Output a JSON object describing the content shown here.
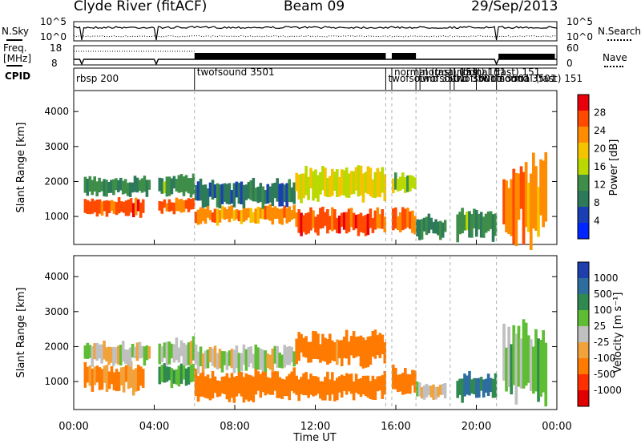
{
  "header": {
    "station": "Clyde River (fitACF)",
    "beam": "Beam 09",
    "date": "29/Sep/2013"
  },
  "nsky_panel": {
    "left_label": "N.Sky",
    "right_label": "N.Search",
    "left_ticks": [
      "10^5",
      "10^0"
    ],
    "right_ticks": [
      "10^5",
      "10^0"
    ]
  },
  "freq_panel": {
    "left_label_1": "Freq.",
    "left_label_2": "[MHz]",
    "right_label": "Nave",
    "left_ticks": [
      "18",
      "8"
    ],
    "right_ticks": [
      "60",
      "0"
    ]
  },
  "cpid": {
    "label": "CPID",
    "segments": [
      {
        "name": "rbsp 200",
        "start_hour": 0.0
      },
      {
        "name": "twofsound 3501",
        "start_hour": 6.0
      },
      {
        "name": "twofsound 3501",
        "start_hour": 15.5
      },
      {
        "name": "normal (fast) 151",
        "start_hour": 15.8
      },
      {
        "name": "twofsound 3501",
        "start_hour": 17.0
      },
      {
        "name": "normal (fast) 151",
        "start_hour": 17.2
      },
      {
        "name": "twofsound 3501",
        "start_hour": 18.7
      },
      {
        "name": "normal (fast) 151",
        "start_hour": 18.9
      },
      {
        "name": "twofsound 3501",
        "start_hour": 20.0
      },
      {
        "name": "normal (fast) 151",
        "start_hour": 21.0
      }
    ]
  },
  "axes": {
    "ylabel": "Slant Range [km]",
    "xlabel": "Time UT",
    "y_ticks": [
      "4000",
      "3000",
      "2000",
      "1000"
    ],
    "x_ticks": [
      "00:00",
      "04:00",
      "08:00",
      "12:00",
      "16:00",
      "20:00",
      "00:00"
    ]
  },
  "power_colorbar": {
    "label": "Power [dB]",
    "ticks": [
      "28",
      "24",
      "20",
      "16",
      "12",
      "8",
      "4"
    ],
    "colors": [
      "#e8000b",
      "#ff4a00",
      "#ff8c00",
      "#f5c400",
      "#b9d900",
      "#3e8e4a",
      "#2c7a5a",
      "#1a3fb4",
      "#0026ff"
    ]
  },
  "velocity_colorbar": {
    "label": "Velocity [m s⁻¹]",
    "ticks": [
      "1000",
      "500",
      "100",
      "25",
      "-25",
      "-100",
      "-500",
      "-1000"
    ],
    "colors": [
      "#1f3fae",
      "#2e6e9e",
      "#2f8a4f",
      "#5fbd34",
      "#c0c0c0",
      "#f2a23a",
      "#ff7a00",
      "#ff3000",
      "#e00000"
    ]
  },
  "chart_data": {
    "type": "heatmap",
    "title": "Clyde River (fitACF) Beam 09 29/Sep/2013",
    "xlabel": "Time UT",
    "ylabel": "Slant Range [km]",
    "xlim": [
      0,
      24
    ],
    "ylim": [
      200,
      4600
    ],
    "panels": [
      {
        "name": "Power",
        "colorbar_label": "Power [dB]",
        "colorbar_range": [
          0,
          32
        ],
        "regions": [
          {
            "t0": 0.5,
            "t1": 3.5,
            "r0": 1000,
            "r1": 1500,
            "value": 28
          },
          {
            "t0": 0.5,
            "t1": 3.8,
            "r0": 1600,
            "r1": 2100,
            "value": 10
          },
          {
            "t0": 4.2,
            "t1": 6.0,
            "r0": 1100,
            "r1": 1500,
            "value": 26
          },
          {
            "t0": 4.2,
            "t1": 6.0,
            "r0": 1600,
            "r1": 2200,
            "value": 12
          },
          {
            "t0": 6.0,
            "t1": 11.0,
            "r0": 800,
            "r1": 1300,
            "value": 24
          },
          {
            "t0": 6.0,
            "t1": 11.0,
            "r0": 1300,
            "r1": 2000,
            "value": 8
          },
          {
            "t0": 11.0,
            "t1": 15.5,
            "r0": 500,
            "r1": 1200,
            "value": 28
          },
          {
            "t0": 11.0,
            "t1": 15.5,
            "r0": 1500,
            "r1": 2400,
            "value": 18
          },
          {
            "t0": 15.8,
            "t1": 17.0,
            "r0": 500,
            "r1": 1200,
            "value": 26
          },
          {
            "t0": 15.8,
            "t1": 17.0,
            "r0": 1700,
            "r1": 2200,
            "value": 16
          },
          {
            "t0": 17.0,
            "t1": 18.5,
            "r0": 400,
            "r1": 1000,
            "value": 10
          },
          {
            "t0": 19.0,
            "t1": 21.0,
            "r0": 400,
            "r1": 1200,
            "value": 12
          },
          {
            "t0": 21.3,
            "t1": 23.5,
            "r0": 400,
            "r1": 2600,
            "value": 24
          }
        ]
      },
      {
        "name": "Velocity",
        "colorbar_label": "Velocity [m s-1]",
        "colorbar_range": [
          -1000,
          1000
        ],
        "regions": [
          {
            "t0": 0.5,
            "t1": 3.5,
            "r0": 700,
            "r1": 1500,
            "value": -100
          },
          {
            "t0": 0.5,
            "t1": 3.8,
            "r0": 1500,
            "r1": 2100,
            "value": 0
          },
          {
            "t0": 4.2,
            "t1": 6.0,
            "r0": 900,
            "r1": 1500,
            "value": 100
          },
          {
            "t0": 4.2,
            "t1": 6.0,
            "r0": 1500,
            "r1": 2200,
            "value": 0
          },
          {
            "t0": 6.0,
            "t1": 11.0,
            "r0": 500,
            "r1": 1300,
            "value": -200
          },
          {
            "t0": 6.0,
            "t1": 11.0,
            "r0": 1300,
            "r1": 2000,
            "value": 0
          },
          {
            "t0": 11.0,
            "t1": 15.5,
            "r0": 500,
            "r1": 1200,
            "value": -200
          },
          {
            "t0": 11.0,
            "t1": 15.5,
            "r0": 1500,
            "r1": 2400,
            "value": -150
          },
          {
            "t0": 15.8,
            "t1": 17.0,
            "r0": 600,
            "r1": 1400,
            "value": -300
          },
          {
            "t0": 17.0,
            "t1": 18.5,
            "r0": 500,
            "r1": 1000,
            "value": 0
          },
          {
            "t0": 19.0,
            "t1": 21.0,
            "r0": 500,
            "r1": 1200,
            "value": 500
          },
          {
            "t0": 21.3,
            "t1": 23.5,
            "r0": 500,
            "r1": 2600,
            "value": 50
          }
        ]
      }
    ]
  }
}
